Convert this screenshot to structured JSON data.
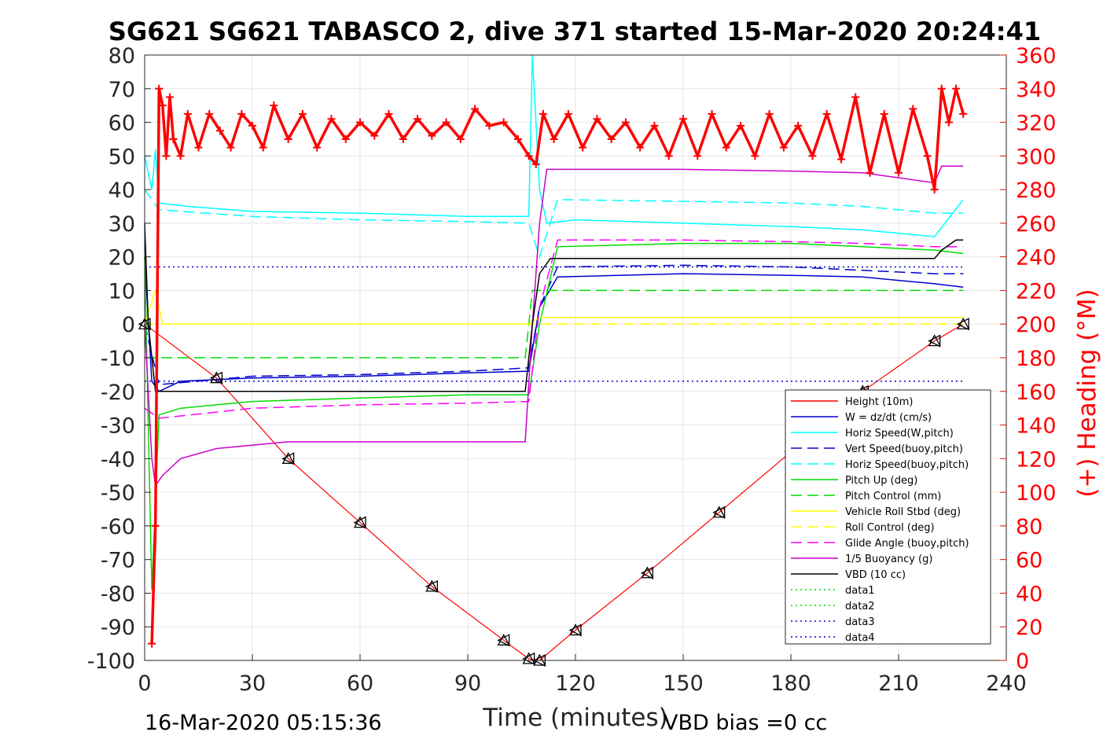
{
  "chart_data": {
    "type": "line",
    "title": "SG621 SG621 TABASCO 2, dive 371 started 15-Mar-2020 20:24:41",
    "xlabel": "Time (minutes)",
    "ylabel_right": "(+) Heading (°M)",
    "xlim": [
      0,
      240
    ],
    "ylim": [
      -100,
      80
    ],
    "ylim_right": [
      0,
      360
    ],
    "x_ticks": [
      "0",
      "30",
      "60",
      "90",
      "120",
      "150",
      "180",
      "210",
      "240"
    ],
    "y_ticks": [
      "80",
      "70",
      "60",
      "50",
      "40",
      "30",
      "20",
      "10",
      "0",
      "-10",
      "-20",
      "-30",
      "-40",
      "-50",
      "-60",
      "-70",
      "-80",
      "-90",
      "-100"
    ],
    "y_ticks_right": [
      "360",
      "340",
      "320",
      "300",
      "280",
      "260",
      "240",
      "220",
      "200",
      "180",
      "160",
      "140",
      "120",
      "100",
      "80",
      "60",
      "40",
      "20",
      "0"
    ],
    "grid": true,
    "legend_position": "bottom-right",
    "footer_left": "16-Mar-2020 05:15:36",
    "footer_right": "VBD bias =0 cc",
    "series": [
      {
        "name": "Height (10m)",
        "color": "#ff0000",
        "style": "solid",
        "x": [
          0,
          20,
          40,
          60,
          80,
          100,
          107,
          110,
          120,
          140,
          160,
          180,
          200,
          220,
          228
        ],
        "y": [
          0,
          -16,
          -40,
          -59,
          -78,
          -94,
          -99.5,
          -100,
          -91,
          -74,
          -56,
          -38,
          -20,
          -5,
          0
        ]
      },
      {
        "name": "W = dz/dt (cm/s)",
        "color": "#0000cc",
        "style": "solid",
        "x": [
          0,
          2,
          4,
          10,
          30,
          60,
          90,
          107,
          110,
          115,
          150,
          180,
          200,
          220,
          228
        ],
        "y": [
          20,
          -17,
          -20,
          -17,
          -16,
          -15.5,
          -14.5,
          -14,
          5,
          14,
          15,
          14.5,
          14,
          12,
          11
        ]
      },
      {
        "name": "Horiz Speed(W,pitch)",
        "color": "#00ffff",
        "style": "solid",
        "x": [
          0,
          2,
          3,
          4,
          12,
          30,
          60,
          90,
          107,
          108,
          110,
          112,
          120,
          150,
          180,
          200,
          220,
          228
        ],
        "y": [
          50,
          40,
          52,
          36,
          35,
          33.5,
          33,
          32,
          32,
          80,
          40,
          30,
          31,
          30,
          29,
          28,
          26,
          37
        ]
      },
      {
        "name": "Vert Speed(buoy,pitch)",
        "color": "#0000cc",
        "style": "dashed",
        "x": [
          0,
          4,
          30,
          60,
          90,
          107,
          110,
          115,
          150,
          180,
          200,
          220,
          228
        ],
        "y": [
          0,
          -18,
          -15.5,
          -15,
          -14,
          -13,
          5,
          17,
          17.5,
          17,
          16,
          15,
          15
        ]
      },
      {
        "name": "Horiz Speed(buoy,pitch)",
        "color": "#00ffff",
        "style": "dashed",
        "x": [
          0,
          4,
          30,
          60,
          90,
          107,
          110,
          115,
          150,
          180,
          200,
          220,
          228
        ],
        "y": [
          40,
          34,
          32,
          31,
          30.5,
          30,
          20,
          37,
          36.5,
          36,
          35,
          33,
          33
        ]
      },
      {
        "name": "Pitch Up (deg)",
        "color": "#00dd00",
        "style": "solid",
        "x": [
          0,
          2,
          4,
          10,
          30,
          60,
          90,
          107,
          110,
          115,
          150,
          180,
          200,
          220,
          228
        ],
        "y": [
          20,
          -79,
          -27,
          -25,
          -23,
          -22,
          -21,
          -21,
          0,
          23,
          24,
          24,
          23,
          22,
          21
        ]
      },
      {
        "name": "Pitch Control (mm)",
        "color": "#00dd00",
        "style": "dashed",
        "x": [
          0,
          106,
          108,
          228
        ],
        "y": [
          -10,
          -10,
          10,
          10
        ]
      },
      {
        "name": "Vehicle Roll Stbd (deg)",
        "color": "#ffff00",
        "style": "solid",
        "x": [
          0,
          3,
          5,
          10,
          30,
          60,
          90,
          107,
          110,
          120,
          150,
          180,
          200,
          220,
          228
        ],
        "y": [
          0,
          10,
          0,
          0,
          0,
          0,
          0,
          0,
          2,
          2,
          2,
          2,
          2,
          2,
          2
        ]
      },
      {
        "name": "Roll Control (deg)",
        "color": "#ffff00",
        "style": "dashed",
        "x": [
          0,
          228
        ],
        "y": [
          0,
          0
        ]
      },
      {
        "name": "Glide Angle (buoy,pitch)",
        "color": "#ff00ff",
        "style": "dashed",
        "x": [
          0,
          4,
          30,
          60,
          90,
          107,
          110,
          115,
          150,
          180,
          200,
          220,
          228
        ],
        "y": [
          -25,
          -28,
          -25,
          -24,
          -23.5,
          -23,
          5,
          25,
          25,
          24.5,
          24,
          23,
          23
        ]
      },
      {
        "name": "1/5 Buoyancy (g)",
        "color": "#cc00cc",
        "style": "solid",
        "x": [
          0,
          2,
          3,
          5,
          10,
          20,
          40,
          106,
          108,
          110,
          112,
          150,
          180,
          200,
          220,
          222,
          228
        ],
        "y": [
          0,
          -40,
          -48,
          -45,
          -40,
          -37,
          -35,
          -35,
          0,
          30,
          46,
          46,
          45.5,
          45,
          42,
          47,
          47
        ]
      },
      {
        "name": "VBD (10 cc)",
        "color": "#000000",
        "style": "solid",
        "x": [
          0,
          1,
          3,
          106,
          108,
          110,
          113,
          220,
          222,
          226,
          228
        ],
        "y": [
          30,
          0,
          -20,
          -20,
          0,
          15,
          19.5,
          19.5,
          22,
          25,
          25
        ]
      },
      {
        "name": "data1",
        "color": "#00dd00",
        "style": "dotted",
        "x": [],
        "y": []
      },
      {
        "name": "data2",
        "color": "#00dd00",
        "style": "dotted",
        "x": [],
        "y": []
      },
      {
        "name": "data3",
        "color": "#0000cc",
        "style": "dotted",
        "x": [
          0,
          228
        ],
        "y": [
          17,
          17
        ]
      },
      {
        "name": "data4",
        "color": "#0000cc",
        "style": "dotted",
        "x": [
          0,
          228
        ],
        "y": [
          -17,
          -17
        ]
      }
    ],
    "heading": {
      "name": "(+) Heading (°M)",
      "color": "#ff0000",
      "axis": "right",
      "x": [
        2,
        3,
        4,
        5,
        6,
        7,
        8,
        10,
        12,
        15,
        18,
        21,
        24,
        27,
        30,
        33,
        36,
        40,
        44,
        48,
        52,
        56,
        60,
        64,
        68,
        72,
        76,
        80,
        84,
        88,
        92,
        96,
        100,
        104,
        107,
        109,
        111,
        114,
        118,
        122,
        126,
        130,
        134,
        138,
        142,
        146,
        150,
        154,
        158,
        162,
        166,
        170,
        174,
        178,
        182,
        186,
        190,
        194,
        198,
        202,
        206,
        210,
        214,
        218,
        220,
        222,
        224,
        226,
        228
      ],
      "y": [
        10,
        80,
        340,
        330,
        300,
        335,
        310,
        300,
        325,
        305,
        325,
        315,
        305,
        325,
        318,
        305,
        330,
        310,
        325,
        305,
        322,
        310,
        320,
        312,
        325,
        310,
        322,
        312,
        320,
        310,
        328,
        318,
        320,
        310,
        300,
        295,
        325,
        310,
        325,
        305,
        322,
        310,
        320,
        305,
        318,
        300,
        322,
        300,
        325,
        305,
        318,
        300,
        325,
        305,
        318,
        300,
        325,
        298,
        335,
        290,
        325,
        290,
        328,
        300,
        280,
        340,
        320,
        340,
        325
      ]
    }
  }
}
